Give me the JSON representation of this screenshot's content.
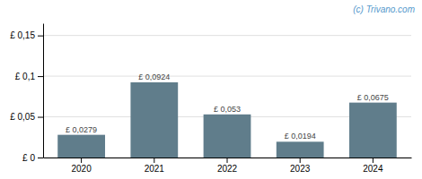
{
  "chart_data": {
    "type": "bar",
    "categories": [
      "2020",
      "2021",
      "2022",
      "2023",
      "2024"
    ],
    "values": [
      0.0279,
      0.0924,
      0.053,
      0.0194,
      0.0675
    ],
    "value_labels": [
      "£ 0,0279",
      "£ 0,0924",
      "£ 0,053",
      "£ 0,0194",
      "£ 0,0675"
    ],
    "data_labels": true,
    "color": "#607d8b",
    "ylim": [
      0,
      0.165
    ],
    "yticks": [
      {
        "value": 0,
        "label": "£ 0"
      },
      {
        "value": 0.05,
        "label": "£ 0,05"
      },
      {
        "value": 0.1,
        "label": "£ 0,1"
      },
      {
        "value": 0.15,
        "label": "£ 0,15"
      }
    ],
    "grid": true,
    "annotation": "(c) Trivano.com"
  }
}
